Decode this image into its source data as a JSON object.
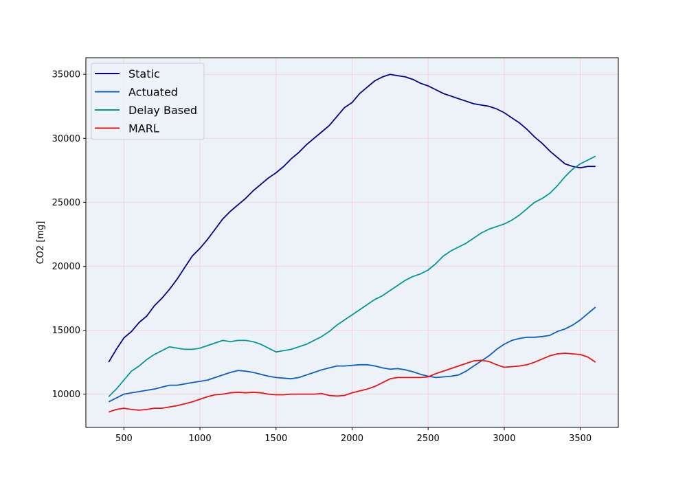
{
  "chart_data": {
    "type": "line",
    "title": "",
    "xlabel": "",
    "ylabel": "CO2 [mg]",
    "xlim": [
      250,
      3750
    ],
    "ylim": [
      7400,
      36300
    ],
    "xticks": [
      500,
      1000,
      1500,
      2000,
      2500,
      3000,
      3500
    ],
    "yticks": [
      10000,
      15000,
      20000,
      25000,
      30000,
      35000
    ],
    "grid": true,
    "legend": "upper-left",
    "colors": {
      "plot_background": "#edf2f9",
      "grid": "#f0d4da"
    },
    "series": [
      {
        "name": "Static",
        "color": "#00008b",
        "x": [
          400,
          450,
          500,
          550,
          600,
          650,
          700,
          750,
          800,
          850,
          900,
          950,
          1000,
          1050,
          1100,
          1150,
          1200,
          1250,
          1300,
          1350,
          1400,
          1450,
          1500,
          1550,
          1600,
          1650,
          1700,
          1750,
          1800,
          1850,
          1900,
          1950,
          2000,
          2050,
          2100,
          2150,
          2200,
          2250,
          2300,
          2350,
          2400,
          2450,
          2500,
          2550,
          2600,
          2650,
          2700,
          2750,
          2800,
          2850,
          2900,
          2950,
          3000,
          3050,
          3100,
          3150,
          3200,
          3250,
          3300,
          3350,
          3400,
          3450,
          3500,
          3550,
          3600
        ],
        "values": [
          12500,
          13500,
          14400,
          14900,
          15600,
          16100,
          16900,
          17500,
          18200,
          19000,
          19900,
          20800,
          21400,
          22100,
          22900,
          23700,
          24300,
          24800,
          25300,
          25900,
          26400,
          26900,
          27300,
          27800,
          28400,
          28900,
          29500,
          30000,
          30500,
          31000,
          31700,
          32400,
          32800,
          33500,
          34000,
          34500,
          34800,
          35000,
          34900,
          34800,
          34600,
          34300,
          34100,
          33800,
          33500,
          33300,
          33100,
          32900,
          32700,
          32600,
          32500,
          32300,
          32000,
          31600,
          31200,
          30700,
          30100,
          29600,
          29000,
          28500,
          28000,
          27800,
          27700,
          27800,
          27800
        ]
      },
      {
        "name": "Actuated",
        "color": "#0a5fc4",
        "x": [
          400,
          450,
          500,
          550,
          600,
          650,
          700,
          750,
          800,
          850,
          900,
          950,
          1000,
          1050,
          1100,
          1150,
          1200,
          1250,
          1300,
          1350,
          1400,
          1450,
          1500,
          1550,
          1600,
          1650,
          1700,
          1750,
          1800,
          1850,
          1900,
          1950,
          2000,
          2050,
          2100,
          2150,
          2200,
          2250,
          2300,
          2350,
          2400,
          2450,
          2500,
          2550,
          2600,
          2650,
          2700,
          2750,
          2800,
          2850,
          2900,
          2950,
          3000,
          3050,
          3100,
          3150,
          3200,
          3250,
          3300,
          3350,
          3400,
          3450,
          3500,
          3550,
          3600
        ],
        "values": [
          9400,
          9700,
          10000,
          10100,
          10200,
          10300,
          10400,
          10550,
          10700,
          10700,
          10800,
          10900,
          11000,
          11100,
          11300,
          11500,
          11700,
          11850,
          11800,
          11700,
          11550,
          11400,
          11300,
          11250,
          11200,
          11300,
          11500,
          11700,
          11900,
          12050,
          12200,
          12200,
          12250,
          12300,
          12300,
          12200,
          12050,
          11950,
          12000,
          11900,
          11750,
          11550,
          11400,
          11300,
          11350,
          11400,
          11500,
          11800,
          12200,
          12600,
          13000,
          13500,
          13900,
          14200,
          14350,
          14450,
          14450,
          14500,
          14600,
          14900,
          15100,
          15400,
          15800,
          16300,
          16800
        ]
      },
      {
        "name": "Delay Based",
        "color": "#00979a",
        "x": [
          400,
          450,
          500,
          550,
          600,
          650,
          700,
          750,
          800,
          850,
          900,
          950,
          1000,
          1050,
          1100,
          1150,
          1200,
          1250,
          1300,
          1350,
          1400,
          1450,
          1500,
          1550,
          1600,
          1650,
          1700,
          1750,
          1800,
          1850,
          1900,
          1950,
          2000,
          2050,
          2100,
          2150,
          2200,
          2250,
          2300,
          2350,
          2400,
          2450,
          2500,
          2550,
          2600,
          2650,
          2700,
          2750,
          2800,
          2850,
          2900,
          2950,
          3000,
          3050,
          3100,
          3150,
          3200,
          3250,
          3300,
          3350,
          3400,
          3450,
          3500,
          3550,
          3600
        ],
        "values": [
          9800,
          10400,
          11100,
          11800,
          12200,
          12700,
          13100,
          13400,
          13700,
          13600,
          13500,
          13500,
          13600,
          13800,
          14000,
          14200,
          14100,
          14200,
          14200,
          14100,
          13900,
          13600,
          13300,
          13400,
          13500,
          13700,
          13900,
          14200,
          14500,
          14900,
          15400,
          15800,
          16200,
          16600,
          17000,
          17400,
          17700,
          18100,
          18500,
          18900,
          19200,
          19400,
          19700,
          20200,
          20800,
          21200,
          21500,
          21800,
          22200,
          22600,
          22900,
          23100,
          23300,
          23600,
          24000,
          24500,
          25000,
          25300,
          25700,
          26300,
          27000,
          27600,
          28000,
          28300,
          28600
        ]
      },
      {
        "name": "MARL",
        "color": "#ee1111",
        "x": [
          400,
          450,
          500,
          550,
          600,
          650,
          700,
          750,
          800,
          850,
          900,
          950,
          1000,
          1050,
          1100,
          1150,
          1200,
          1250,
          1300,
          1350,
          1400,
          1450,
          1500,
          1550,
          1600,
          1650,
          1700,
          1750,
          1800,
          1850,
          1900,
          1950,
          2000,
          2050,
          2100,
          2150,
          2200,
          2250,
          2300,
          2350,
          2400,
          2450,
          2500,
          2550,
          2600,
          2650,
          2700,
          2750,
          2800,
          2850,
          2900,
          2950,
          3000,
          3050,
          3100,
          3150,
          3200,
          3250,
          3300,
          3350,
          3400,
          3450,
          3500,
          3550,
          3600
        ],
        "values": [
          8600,
          8800,
          8900,
          8800,
          8750,
          8800,
          8900,
          8900,
          9000,
          9100,
          9250,
          9400,
          9600,
          9800,
          9950,
          10000,
          10100,
          10150,
          10100,
          10150,
          10100,
          10000,
          9950,
          9950,
          10000,
          10000,
          10000,
          10000,
          10050,
          9900,
          9850,
          9900,
          10100,
          10250,
          10400,
          10600,
          10900,
          11200,
          11300,
          11300,
          11300,
          11300,
          11350,
          11600,
          11800,
          12000,
          12200,
          12400,
          12600,
          12650,
          12550,
          12300,
          12100,
          12150,
          12200,
          12300,
          12500,
          12750,
          13000,
          13150,
          13200,
          13150,
          13100,
          12900,
          12500
        ]
      }
    ]
  }
}
